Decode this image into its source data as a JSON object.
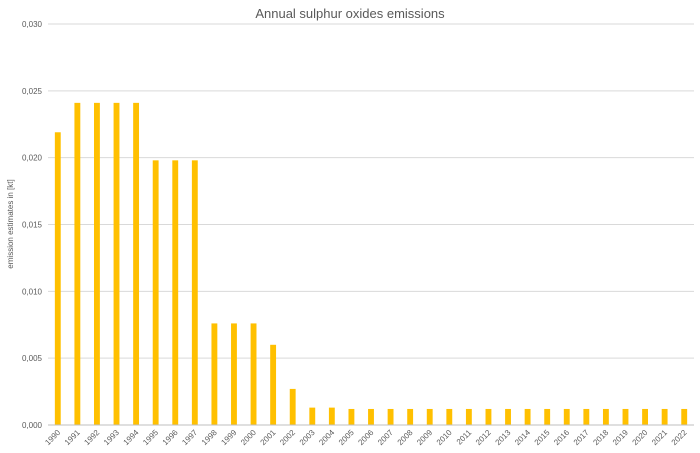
{
  "chart_data": {
    "type": "bar",
    "title": "Annual sulphur oxides emissions",
    "xlabel": "",
    "ylabel": "emission estimates in [kt]",
    "ylim": [
      0,
      0.03
    ],
    "yticks": [
      "0,000",
      "0,005",
      "0,010",
      "0,015",
      "0,020",
      "0,025",
      "0,030"
    ],
    "ytick_values": [
      0,
      0.005,
      0.01,
      0.015,
      0.02,
      0.025,
      0.03
    ],
    "grid": true,
    "legend": "none",
    "bar_color": "#FFC000",
    "categories": [
      "1990",
      "1991",
      "1992",
      "1993",
      "1994",
      "1995",
      "1996",
      "1997",
      "1998",
      "1999",
      "2000",
      "2001",
      "2002",
      "2003",
      "2004",
      "2005",
      "2006",
      "2007",
      "2008",
      "2009",
      "2010",
      "2011",
      "2012",
      "2013",
      "2014",
      "2015",
      "2016",
      "2017",
      "2018",
      "2019",
      "2020",
      "2021",
      "2022"
    ],
    "values": [
      0.0219,
      0.0241,
      0.0241,
      0.0241,
      0.0241,
      0.0198,
      0.0198,
      0.0198,
      0.0076,
      0.0076,
      0.0076,
      0.006,
      0.0027,
      0.0013,
      0.0013,
      0.0012,
      0.0012,
      0.0012,
      0.0012,
      0.0012,
      0.0012,
      0.0012,
      0.0012,
      0.0012,
      0.0012,
      0.0012,
      0.0012,
      0.0012,
      0.0012,
      0.0012,
      0.0012,
      0.0012,
      0.0012
    ]
  }
}
